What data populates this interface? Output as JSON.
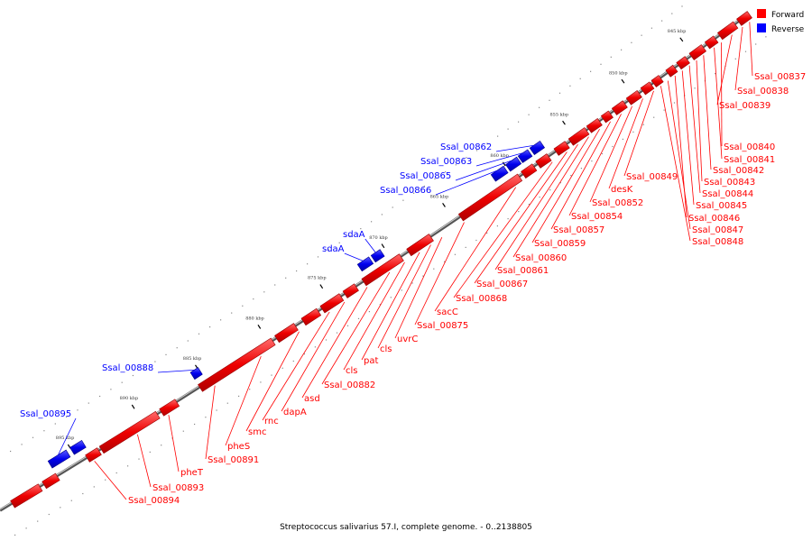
{
  "caption": "Streptococcus salivarius 57.I, complete genome. - 0..2138805",
  "legend": [
    {
      "label": "Forward",
      "color": "#ff0000"
    },
    {
      "label": "Reverse",
      "color": "#0000ff"
    }
  ],
  "ticks": [
    "845 kbp",
    "850 kbp",
    "855 kbp",
    "860 kbp",
    "865 kbp",
    "870 kbp",
    "875 kbp",
    "880 kbp",
    "885 kbp",
    "890 kbp",
    "895 kbp"
  ],
  "forward_labels": [
    "Ssal_00837",
    "Ssal_00838",
    "Ssal_00839",
    "Ssal_00840",
    "Ssal_00841",
    "Ssal_00842",
    "Ssal_00843",
    "Ssal_00844",
    "Ssal_00845",
    "Ssal_00846",
    "Ssal_00847",
    "Ssal_00848",
    "Ssal_00849",
    "desK",
    "Ssal_00852",
    "Ssal_00854",
    "Ssal_00857",
    "Ssal_00859",
    "Ssal_00860",
    "Ssal_00861",
    "Ssal_00867",
    "Ssal_00868",
    "sacC",
    "Ssal_00875",
    "uvrC",
    "cls",
    "pat",
    "cls",
    "Ssal_00882",
    "asd",
    "dapA",
    "rnc",
    "smc",
    "pheS",
    "Ssal_00891",
    "pheT",
    "Ssal_00893",
    "Ssal_00894"
  ],
  "reverse_labels": [
    "Ssal_00862",
    "Ssal_00863",
    "Ssal_00865",
    "Ssal_00866",
    "sdaA",
    "sdaA",
    "Ssal_00888",
    "Ssal_00895"
  ],
  "colors": {
    "forward": "#ff0000",
    "reverse": "#0000ff",
    "backbone": "#888888",
    "leader_forward": "#ff0000",
    "leader_reverse": "#0000ff"
  }
}
